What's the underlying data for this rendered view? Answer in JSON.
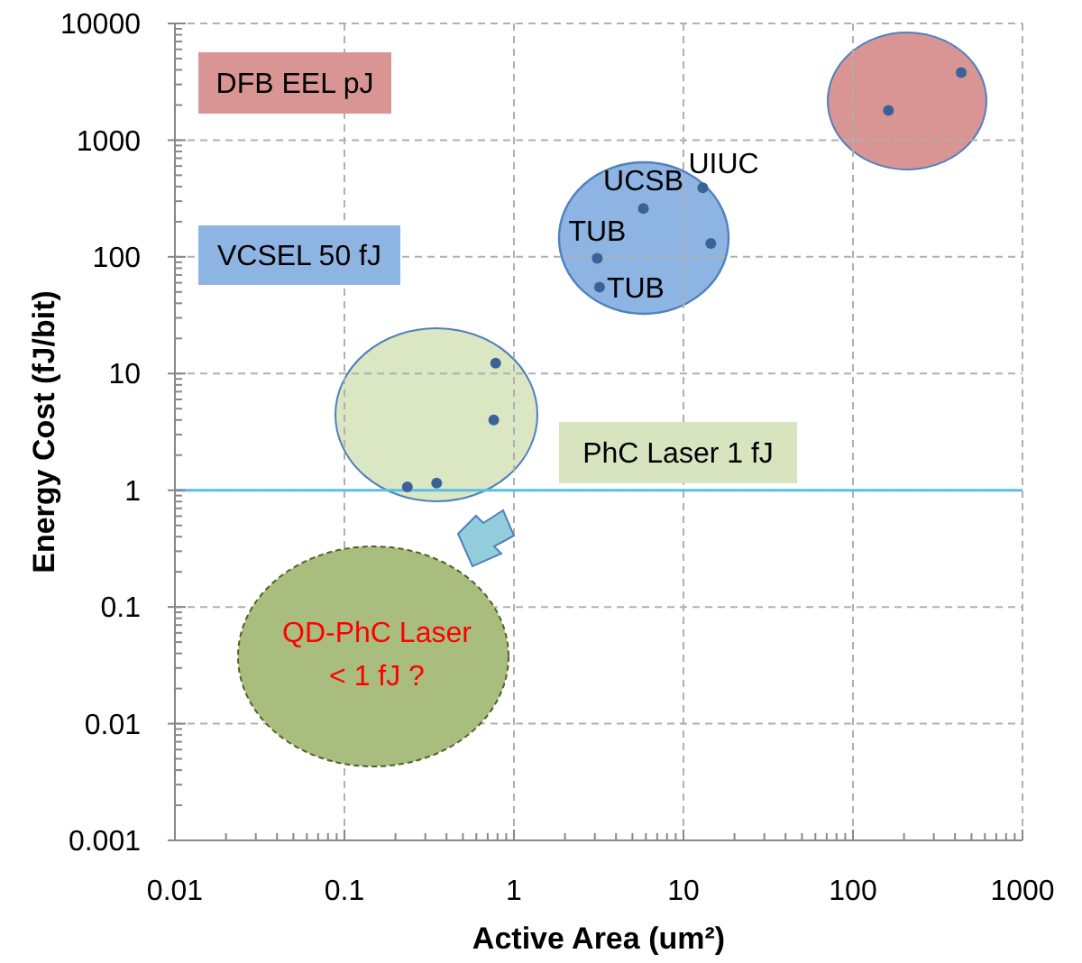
{
  "chart_data": {
    "type": "scatter",
    "xlabel": "Active Area (um²)",
    "ylabel": "Energy Cost (fJ/bit)",
    "log": "xy",
    "xlim": [
      0.01,
      1000
    ],
    "ylim": [
      0.001,
      10000
    ],
    "xticks": [
      0.01,
      0.1,
      1,
      10,
      100,
      1000
    ],
    "yticks": [
      0.001,
      0.01,
      0.1,
      1,
      10,
      100,
      1000,
      10000
    ],
    "grid": true,
    "marker": "circle",
    "x": [
      435,
      162,
      13,
      5.8,
      14.5,
      3.1,
      3.2,
      0.78,
      0.76,
      0.235,
      0.35
    ],
    "series": [
      {
        "color": "#3b6296",
        "values": [
          3800,
          1800,
          390,
          260,
          130,
          97,
          55,
          12.3,
          4.0,
          1.07,
          1.15
        ]
      }
    ],
    "ref_lines": [
      {
        "axis": "y",
        "value": 1,
        "color": "#5bc0e8"
      }
    ],
    "annotations": [
      "DFB EEL pJ",
      "VCSEL 50 fJ",
      "PhC Laser 1 fJ",
      "QD-PhC Laser\n< 1 fJ ?",
      {
        "text": "UIUC",
        "x": 13,
        "y": 390
      },
      {
        "text": "UCSB",
        "x": 5.8,
        "y": 260
      },
      {
        "text": "TUB",
        "x": 3.1,
        "y": 97
      },
      {
        "text": "TUB",
        "x": 3.2,
        "y": 55
      }
    ]
  }
}
